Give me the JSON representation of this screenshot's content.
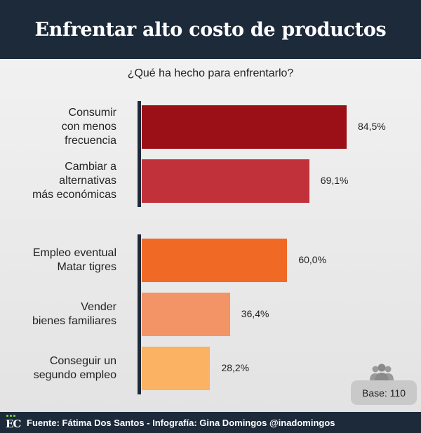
{
  "header": {
    "title": "Enfrentar alto costo de productos"
  },
  "chart_data": {
    "type": "bar",
    "orientation": "horizontal",
    "subtitle": "¿Qué ha hecho para enfrentarlo?",
    "categories": [
      "Consumir\ncon menos\nfrecuencia",
      "Cambiar a\nalternativas\nmás económicas",
      "Empleo eventual\nMatar tigres",
      "Vender\nbienes familiares",
      "Conseguir un\nsegundo empleo"
    ],
    "values": [
      84.5,
      69.1,
      60.0,
      36.4,
      28.2
    ],
    "value_labels": [
      "84,5%",
      "69,1%",
      "60,0%",
      "36,4%",
      "28,2%"
    ],
    "colors": [
      "#9b0f16",
      "#c0313a",
      "#f06a25",
      "#f39466",
      "#fbb262"
    ],
    "groups": [
      [
        0,
        1
      ],
      [
        2,
        3,
        4
      ]
    ],
    "xlim": [
      0,
      100
    ],
    "grid": false
  },
  "base": {
    "label": "Base: 110",
    "icon": "people-icon"
  },
  "footer": {
    "logo": "EC",
    "source": "Fuente: Fátima Dos Santos - Infografía: Gina Domingos @inadomingos"
  }
}
